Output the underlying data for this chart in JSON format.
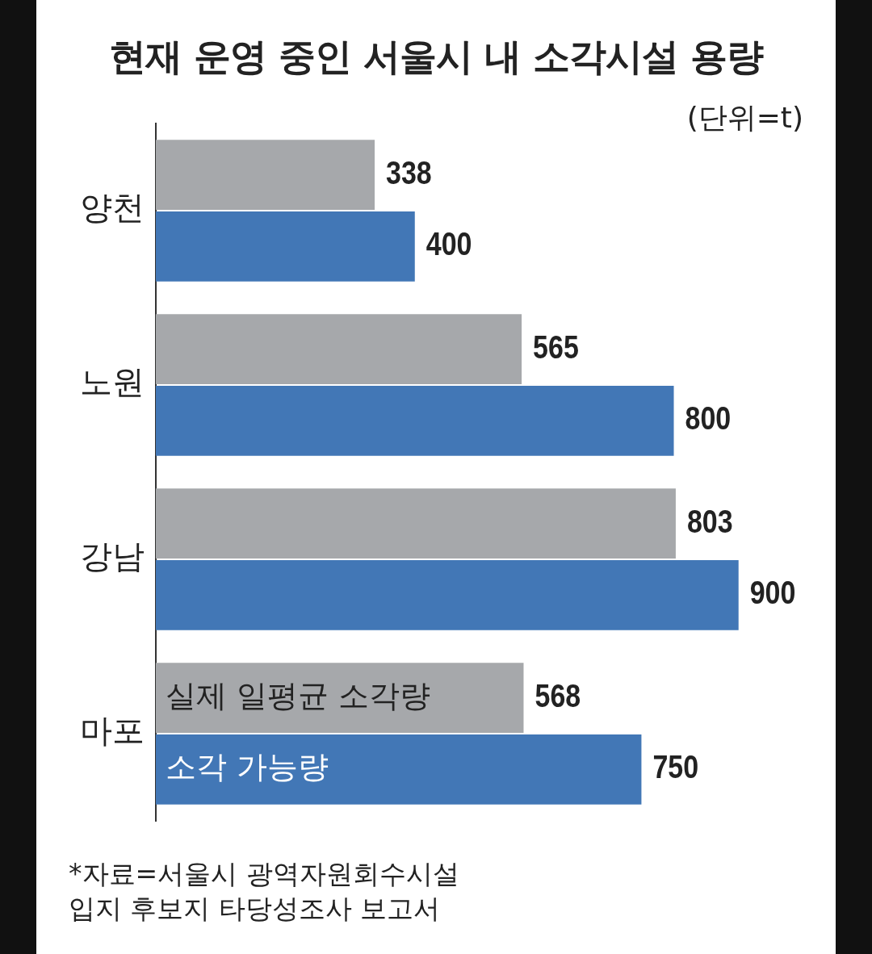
{
  "chart_data": {
    "type": "bar",
    "orientation": "horizontal",
    "title": "현재 운영 중인 서울시 내 소각시설 용량",
    "subtitle": "(단위=t)",
    "categories": [
      "양천",
      "노원",
      "강남",
      "마포"
    ],
    "series": [
      {
        "name": "실제 일평균 소각량",
        "color": "#a6a8ab",
        "values": [
          338,
          565,
          803,
          568
        ]
      },
      {
        "name": "소각 가능량",
        "color": "#4277b6",
        "values": [
          400,
          800,
          900,
          750
        ]
      }
    ],
    "xlim": [
      0,
      1050
    ],
    "tick_labels": "y",
    "legend": false,
    "data_labels": true,
    "annotations": [
      "*자료=서울시 광역자원회수시설\n입지 후보지 타당성조사 보고서"
    ]
  }
}
